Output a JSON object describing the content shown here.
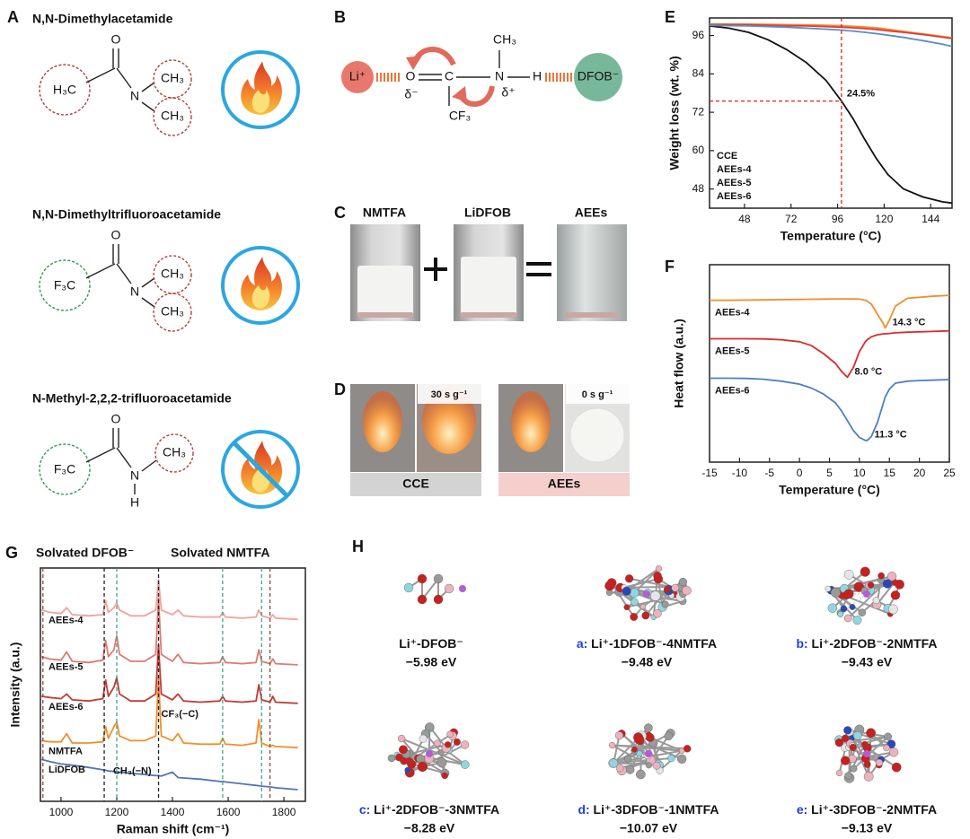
{
  "panels": {
    "a": {
      "letter": "A",
      "molecules": [
        {
          "name": "N,N-Dimethylacetamide",
          "left": "H₃C",
          "o": "O",
          "n": "N",
          "r1": "CH₃",
          "r2": "CH₃"
        },
        {
          "name": "N,N-Dimethyltrifluoroacetamide",
          "left": "F₃C",
          "o": "O",
          "n": "N",
          "r1": "CH₃",
          "r2": "CH₃"
        },
        {
          "name": "N-Methyl-2,2,2-trifluoroacetamide",
          "left": "F₃C",
          "o": "O",
          "n": "N",
          "r1": "CH₃",
          "h": "H"
        }
      ]
    },
    "b": {
      "letter": "B",
      "li": "Li⁺",
      "o": "O",
      "c": "C",
      "n": "N",
      "h": "H",
      "ch3": "CH₃",
      "cf3": "CF₃",
      "delta_minus": "δ⁻",
      "delta_plus": "δ⁺",
      "anion": "DFOB⁻"
    },
    "c": {
      "letter": "C",
      "vials": [
        "NMTFA",
        "LiDFOB",
        "AEEs"
      ]
    },
    "d": {
      "letter": "D",
      "groups": [
        {
          "label": "CCE",
          "time": "30 s g⁻¹"
        },
        {
          "label": "AEEs",
          "time": "0 s g⁻¹"
        }
      ]
    },
    "h": {
      "letter": "H",
      "clusters": [
        {
          "label": "Li⁺-DFOB⁻",
          "energy": "−5.98 eV"
        },
        {
          "prefix": "a:",
          "label": "Li⁺-1DFOB⁻-4NMTFA",
          "energy": "−9.48 eV"
        },
        {
          "prefix": "b:",
          "label": "Li⁺-2DFOB⁻-2NMTFA",
          "energy": "−9.43 eV"
        },
        {
          "prefix": "c:",
          "label": "Li⁺-2DFOB⁻-3NMTFA",
          "energy": "−8.28 eV"
        },
        {
          "prefix": "d:",
          "label": "Li⁺-3DFOB⁻-1NMTFA",
          "energy": "−10.07 eV"
        },
        {
          "prefix": "e:",
          "label": "Li⁺-3DFOB⁻-2NMTFA",
          "energy": "−9.13 eV"
        }
      ]
    }
  },
  "chart_data": [
    {
      "type": "line",
      "panel": "E",
      "xlabel": "Temperature (°C)",
      "ylabel": "Weight loss (wt. %)",
      "xlim": [
        30,
        155
      ],
      "ylim": [
        42,
        101.5
      ],
      "xticks": [
        48,
        72,
        96,
        120,
        144
      ],
      "yticks": [
        48,
        60,
        72,
        84,
        96
      ],
      "legend": "lower left",
      "ref_x": 98,
      "ref_y": 75.5,
      "annotations": [
        {
          "text": "24.5%"
        }
      ],
      "x": [
        30,
        40,
        50,
        60,
        70,
        80,
        90,
        98,
        104,
        110,
        116,
        122,
        130,
        140,
        150,
        155
      ],
      "series": [
        {
          "name": "CCE",
          "color": "#111111",
          "values": [
            99,
            98.3,
            97,
            94.7,
            91.5,
            87.5,
            82,
            75.5,
            70,
            63.5,
            57.5,
            52.5,
            48,
            45.5,
            44,
            43.6
          ]
        },
        {
          "name": "AEEs-4",
          "color": "#f28e2b",
          "values": [
            99.6,
            99.6,
            99.6,
            99.5,
            99.4,
            99.3,
            99.2,
            99.1,
            98.9,
            98.7,
            98.4,
            98,
            97.3,
            96.5,
            95.7,
            95.3
          ]
        },
        {
          "name": "AEEs-5",
          "color": "#e03a3a",
          "values": [
            99.4,
            99.4,
            99.3,
            99.2,
            99.1,
            99,
            98.8,
            98.6,
            98.4,
            98.2,
            97.9,
            97.5,
            97,
            96.3,
            95.5,
            95.1
          ]
        },
        {
          "name": "AEEs-6",
          "color": "#5b8cc7",
          "values": [
            99.2,
            99.1,
            99,
            98.8,
            98.6,
            98.3,
            98,
            97.7,
            97.4,
            97,
            96.6,
            96.1,
            95.4,
            94.4,
            93.3,
            92.6
          ]
        }
      ]
    },
    {
      "type": "line",
      "panel": "F",
      "xlabel": "Temperature (°C)",
      "ylabel": "Heat flow (a.u.)",
      "xlim": [
        -15,
        25
      ],
      "ylim": [
        0,
        10
      ],
      "xticks": [
        -15,
        -10,
        -5,
        0,
        5,
        10,
        15,
        20,
        25
      ],
      "legend": "inline",
      "annotations": [
        {
          "text": "14.3 °C",
          "x": 14.3,
          "series": 0
        },
        {
          "text": "8.0 °C",
          "x": 8,
          "series": 1
        },
        {
          "text": "11.3 °C",
          "x": 11.3,
          "series": 2
        }
      ],
      "x": [
        -15,
        -12,
        -9,
        -6,
        -3,
        0,
        2,
        4,
        6,
        7,
        8,
        9,
        10,
        11,
        11.3,
        12,
        13,
        14,
        14.3,
        15,
        16,
        18,
        20,
        22,
        25
      ],
      "series": [
        {
          "name": "AEEs-4",
          "color": "#f28e2b",
          "values": [
            8.2,
            8.2,
            8.21,
            8.22,
            8.23,
            8.24,
            8.25,
            8.26,
            8.27,
            8.27,
            8.27,
            8.27,
            8.26,
            8.2,
            8.15,
            8.0,
            7.5,
            7.0,
            6.8,
            7.2,
            7.9,
            8.3,
            8.35,
            8.4,
            8.45
          ]
        },
        {
          "name": "AEEs-5",
          "color": "#d92b2b",
          "values": [
            6.25,
            6.25,
            6.25,
            6.24,
            6.2,
            6.1,
            5.9,
            5.5,
            5.0,
            4.6,
            4.3,
            4.8,
            5.6,
            6.1,
            6.2,
            6.35,
            6.45,
            6.5,
            6.5,
            6.52,
            6.55,
            6.58,
            6.6,
            6.62,
            6.65
          ]
        },
        {
          "name": "AEEs-6",
          "color": "#4f7fc0",
          "values": [
            4.25,
            4.25,
            4.24,
            4.2,
            4.1,
            3.95,
            3.75,
            3.45,
            3.0,
            2.6,
            2.1,
            1.6,
            1.25,
            1.1,
            1.1,
            1.3,
            2.0,
            3.0,
            3.3,
            3.7,
            4.0,
            4.1,
            4.13,
            4.15,
            4.18
          ]
        }
      ]
    },
    {
      "type": "line",
      "panel": "G",
      "xlabel": "Raman shift (cm⁻¹)",
      "ylabel": "Intensity (a.u.)",
      "xlim": [
        926,
        1877
      ],
      "ylim": [
        0,
        10
      ],
      "xticks": [
        1000,
        1200,
        1400,
        1600,
        1800
      ],
      "legend": "inline",
      "headers": [
        {
          "text": "Solvated DFOB⁻",
          "color": "#8b4a3c"
        },
        {
          "text": "Solvated NMTFA",
          "color": "#3aa58f"
        }
      ],
      "ref_lines": [
        {
          "x": 935,
          "color": "#8b4a3c"
        },
        {
          "x": 1750,
          "color": "#8b4a3c"
        },
        {
          "x": 1155,
          "color": "#222222"
        },
        {
          "x": 1350,
          "color": "#222222"
        },
        {
          "x": 1200,
          "color": "#3aa58f"
        },
        {
          "x": 1580,
          "color": "#3aa58f"
        },
        {
          "x": 1720,
          "color": "#3aa58f"
        }
      ],
      "annotations": [
        {
          "text": "CF₃(−C)",
          "x": 1350
        },
        {
          "text": "CH₃(−N)",
          "x": 1200
        }
      ],
      "x": [
        930,
        960,
        1000,
        1020,
        1040,
        1100,
        1150,
        1160,
        1170,
        1190,
        1200,
        1210,
        1250,
        1300,
        1340,
        1350,
        1360,
        1400,
        1420,
        1440,
        1500,
        1570,
        1580,
        1590,
        1650,
        1700,
        1710,
        1720,
        1750,
        1760,
        1770,
        1850
      ],
      "series": [
        {
          "name": "AEEs-4",
          "color": "#f2a29b",
          "values": [
            8.2,
            8.1,
            8.05,
            8.3,
            8.0,
            7.95,
            8.0,
            8.6,
            8.1,
            8.3,
            8.5,
            8.2,
            7.95,
            7.95,
            8.2,
            9.5,
            8.2,
            8.0,
            8.2,
            7.95,
            7.9,
            7.9,
            8.1,
            7.9,
            7.85,
            7.9,
            8.2,
            7.95,
            7.85,
            8.0,
            7.85,
            7.8
          ]
        },
        {
          "name": "AEEs-5",
          "color": "#de7a72",
          "values": [
            6.2,
            6.1,
            6.05,
            6.4,
            6.0,
            5.95,
            6.05,
            6.9,
            6.2,
            6.5,
            7.1,
            6.3,
            6.0,
            6.0,
            6.3,
            8.7,
            6.3,
            6.0,
            6.3,
            5.95,
            5.9,
            5.95,
            6.2,
            5.95,
            5.9,
            5.95,
            6.5,
            6.0,
            5.9,
            6.1,
            5.9,
            5.85
          ]
        },
        {
          "name": "AEEs-6",
          "color": "#c33b35",
          "values": [
            4.5,
            4.45,
            4.4,
            4.6,
            4.35,
            4.3,
            4.4,
            5.2,
            4.5,
            4.9,
            5.3,
            4.6,
            4.3,
            4.3,
            4.6,
            6.7,
            4.6,
            4.35,
            4.6,
            4.3,
            4.25,
            4.3,
            4.5,
            4.3,
            4.25,
            4.3,
            5.0,
            4.35,
            4.25,
            4.5,
            4.25,
            4.2
          ]
        },
        {
          "name": "NMTFA",
          "color": "#f28e2b",
          "values": [
            2.6,
            2.55,
            2.55,
            2.9,
            2.5,
            2.5,
            2.55,
            3.2,
            2.7,
            3.2,
            3.4,
            2.8,
            2.6,
            2.6,
            2.8,
            5.3,
            2.8,
            2.6,
            2.9,
            2.5,
            2.45,
            2.45,
            2.7,
            2.45,
            2.4,
            2.5,
            3.5,
            2.5,
            2.35,
            2.4,
            2.35,
            2.3
          ]
        },
        {
          "name": "LiDFOB",
          "color": "#4f77b5",
          "values": [
            1.8,
            1.7,
            1.6,
            1.58,
            1.55,
            1.45,
            1.35,
            1.33,
            1.3,
            1.28,
            1.27,
            1.25,
            1.2,
            1.15,
            1.1,
            1.1,
            1.08,
            1.25,
            1.02,
            1.0,
            0.95,
            0.85,
            0.85,
            0.83,
            0.75,
            0.68,
            0.67,
            0.65,
            0.62,
            0.6,
            0.58,
            0.5
          ]
        }
      ]
    }
  ]
}
